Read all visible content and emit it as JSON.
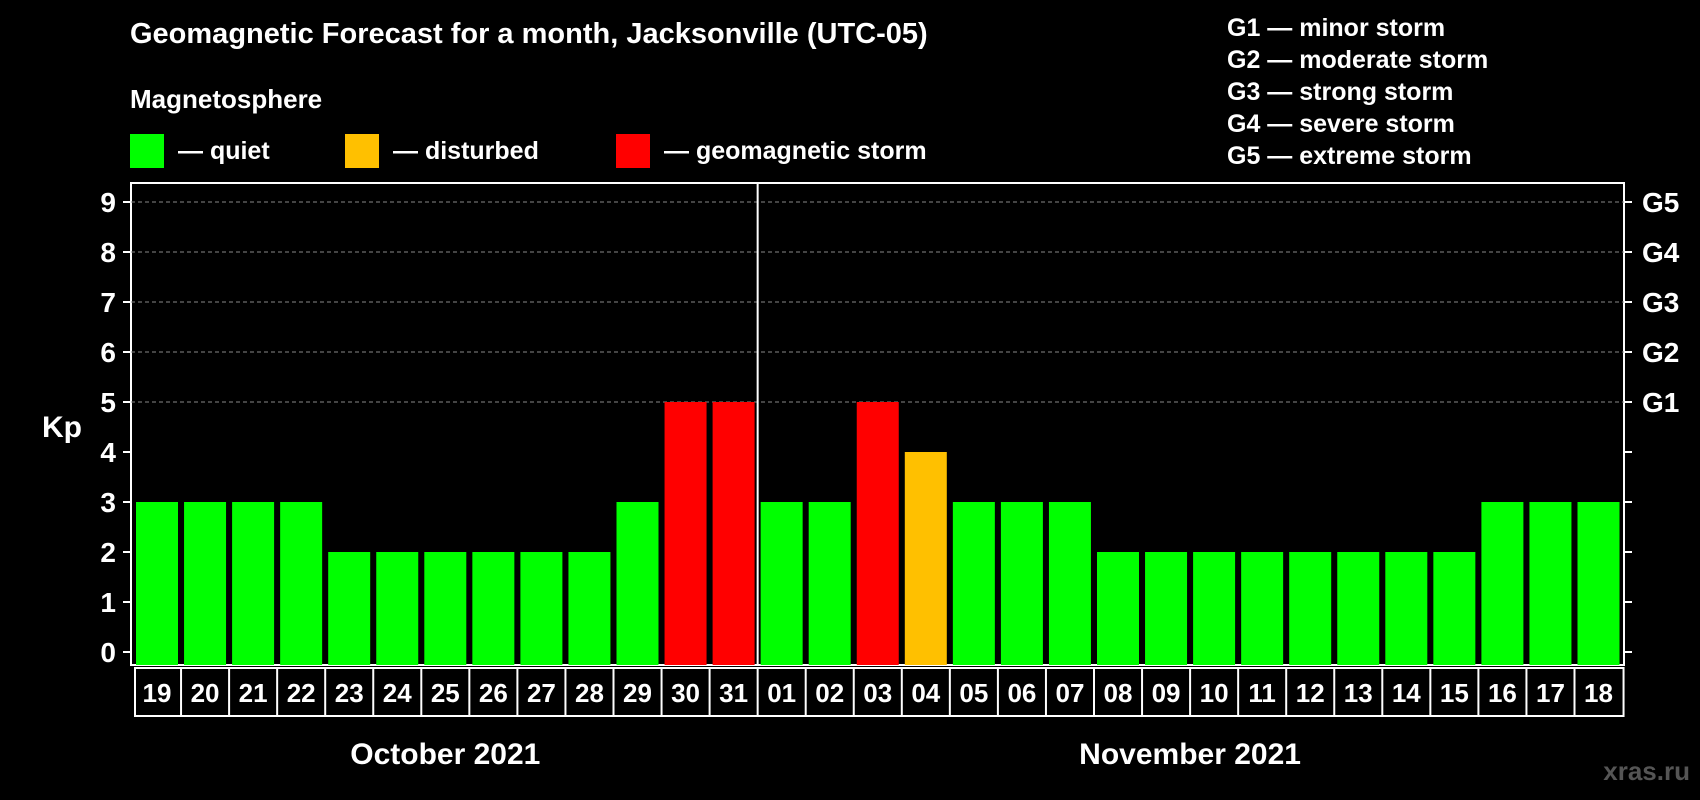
{
  "header": {
    "title": "Geomagnetic Forecast for a month, Jacksonville (UTC-05)",
    "subtitle": "Magnetosphere"
  },
  "legend": [
    {
      "label": "— quiet",
      "color": "#00ff00"
    },
    {
      "label": "— disturbed",
      "color": "#ffc000"
    },
    {
      "label": "— geomagnetic storm",
      "color": "#ff0000"
    }
  ],
  "storm_scale": [
    "G1 — minor storm",
    "G2 — moderate storm",
    "G3 — strong storm",
    "G4 — severe storm",
    "G5 — extreme storm"
  ],
  "watermark": "xras.ru",
  "colors": {
    "quiet": "#00ff00",
    "disturbed": "#ffc000",
    "storm": "#ff0000",
    "background": "#000000",
    "axis": "#ffffff"
  },
  "chart_data": {
    "type": "bar",
    "title": "Geomagnetic Forecast for a month, Jacksonville (UTC-05)",
    "ylabel": "Kp",
    "ylim": [
      0,
      9
    ],
    "yticks": [
      0,
      1,
      2,
      3,
      4,
      5,
      6,
      7,
      8,
      9
    ],
    "right_tick_labels": [
      {
        "kp": 5,
        "label": "G1"
      },
      {
        "kp": 6,
        "label": "G2"
      },
      {
        "kp": 7,
        "label": "G3"
      },
      {
        "kp": 8,
        "label": "G4"
      },
      {
        "kp": 9,
        "label": "G5"
      }
    ],
    "grid": "dashed horizontal at Kp 5–9",
    "categories": [
      "19",
      "20",
      "21",
      "22",
      "23",
      "24",
      "25",
      "26",
      "27",
      "28",
      "29",
      "30",
      "31",
      "01",
      "02",
      "03",
      "04",
      "05",
      "06",
      "07",
      "08",
      "09",
      "10",
      "11",
      "12",
      "13",
      "14",
      "15",
      "16",
      "17",
      "18"
    ],
    "values": [
      3,
      3,
      3,
      3,
      2,
      2,
      2,
      2,
      2,
      2,
      3,
      5,
      5,
      3,
      3,
      5,
      4,
      3,
      3,
      3,
      2,
      2,
      2,
      2,
      2,
      2,
      2,
      2,
      3,
      3,
      3
    ],
    "status": [
      "quiet",
      "quiet",
      "quiet",
      "quiet",
      "quiet",
      "quiet",
      "quiet",
      "quiet",
      "quiet",
      "quiet",
      "quiet",
      "storm",
      "storm",
      "quiet",
      "quiet",
      "storm",
      "disturbed",
      "quiet",
      "quiet",
      "quiet",
      "quiet",
      "quiet",
      "quiet",
      "quiet",
      "quiet",
      "quiet",
      "quiet",
      "quiet",
      "quiet",
      "quiet",
      "quiet"
    ],
    "months": [
      {
        "label": "October 2021",
        "start": 0,
        "count": 13
      },
      {
        "label": "November 2021",
        "start": 13,
        "count": 18
      }
    ]
  }
}
